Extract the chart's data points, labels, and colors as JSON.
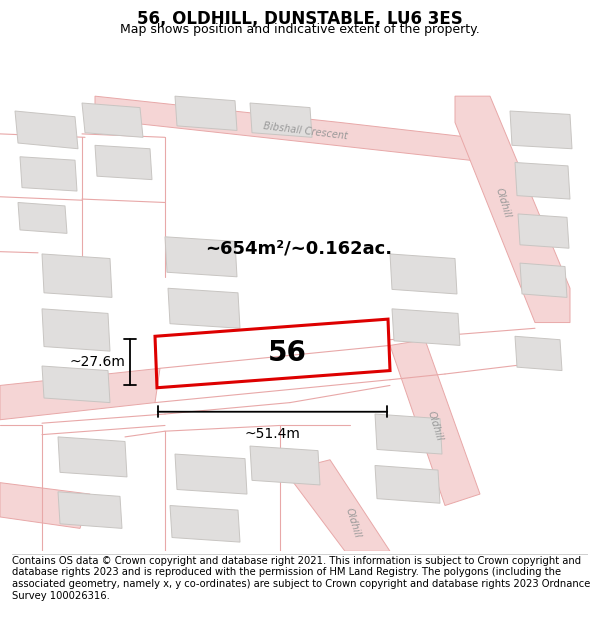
{
  "title": "56, OLDHILL, DUNSTABLE, LU6 3ES",
  "subtitle": "Map shows position and indicative extent of the property.",
  "footer": "Contains OS data © Crown copyright and database right 2021. This information is subject to Crown copyright and database rights 2023 and is reproduced with the permission of HM Land Registry. The polygons (including the associated geometry, namely x, y co-ordinates) are subject to Crown copyright and database rights 2023 Ordnance Survey 100026316.",
  "area_label": "~654m²/~0.162ac.",
  "width_label": "~51.4m",
  "height_label": "~27.6m",
  "plot_number": "56",
  "map_bg": "#f2f0ed",
  "road_fill": "#f5d5d5",
  "road_edge": "#e8a8a8",
  "building_fill": "#e0dedd",
  "building_edge": "#c8c5c2",
  "plot_red": "#dd0000",
  "title_fontsize": 12,
  "subtitle_fontsize": 9,
  "footer_fontsize": 7.2,
  "label_fontsize": 13,
  "dim_fontsize": 10,
  "road_label_fontsize": 7,
  "num_fontsize": 20
}
